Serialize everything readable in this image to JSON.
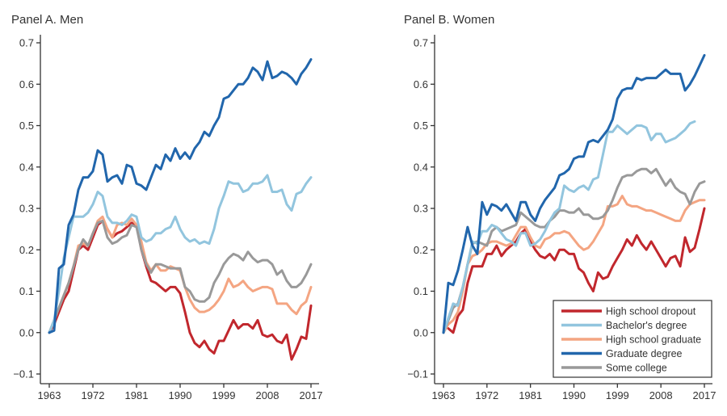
{
  "chart_data": [
    {
      "type": "line",
      "title": "Panel A. Men",
      "xlabel": "",
      "ylabel": "",
      "xlim": [
        1963,
        2017
      ],
      "ylim": [
        -0.1,
        0.7
      ],
      "xticks": [
        1963,
        1972,
        1981,
        1990,
        1999,
        2008,
        2017
      ],
      "xtick_labels": [
        "1963",
        "1972",
        "1981",
        "1990",
        "1999",
        "2008",
        "2017"
      ],
      "yticks": [
        -0.1,
        0.0,
        0.1,
        0.2,
        0.3,
        0.4,
        0.5,
        0.6,
        0.7
      ],
      "ytick_labels": [
        "−0.1",
        "0.0",
        "0.1",
        "0.2",
        "0.3",
        "0.4",
        "0.5",
        "0.6",
        "0.7"
      ],
      "grid": false,
      "legend": null,
      "x": [
        1963,
        1964,
        1965,
        1966,
        1967,
        1968,
        1969,
        1970,
        1971,
        1972,
        1973,
        1974,
        1975,
        1976,
        1977,
        1978,
        1979,
        1980,
        1981,
        1982,
        1983,
        1984,
        1985,
        1986,
        1987,
        1988,
        1989,
        1990,
        1991,
        1992,
        1993,
        1994,
        1995,
        1996,
        1997,
        1998,
        1999,
        2000,
        2001,
        2002,
        2003,
        2004,
        2005,
        2006,
        2007,
        2008,
        2009,
        2010,
        2011,
        2012,
        2013,
        2014,
        2015,
        2016,
        2017
      ],
      "series": [
        {
          "name": "High school dropout",
          "color": "#c1272d",
          "values": [
            0.0,
            0.02,
            0.05,
            0.08,
            0.1,
            0.15,
            0.2,
            0.21,
            0.2,
            0.23,
            0.26,
            0.27,
            0.25,
            0.23,
            0.24,
            0.245,
            0.255,
            0.265,
            0.26,
            0.2,
            0.16,
            0.125,
            0.12,
            0.11,
            0.1,
            0.11,
            0.11,
            0.095,
            0.05,
            0.0,
            -0.025,
            -0.035,
            -0.02,
            -0.04,
            -0.05,
            -0.02,
            -0.02,
            0.005,
            0.03,
            0.01,
            0.02,
            0.02,
            0.01,
            0.03,
            -0.005,
            -0.01,
            -0.005,
            -0.02,
            -0.025,
            -0.005,
            -0.065,
            -0.04,
            -0.01,
            -0.015,
            0.065
          ]
        },
        {
          "name": "Bachelor's degree",
          "color": "#92c5de",
          "values": [
            0.0,
            0.03,
            0.1,
            0.18,
            0.23,
            0.28,
            0.28,
            0.28,
            0.29,
            0.31,
            0.34,
            0.33,
            0.28,
            0.265,
            0.265,
            0.26,
            0.27,
            0.285,
            0.28,
            0.23,
            0.22,
            0.225,
            0.24,
            0.24,
            0.25,
            0.255,
            0.28,
            0.25,
            0.23,
            0.22,
            0.225,
            0.215,
            0.22,
            0.215,
            0.25,
            0.3,
            0.33,
            0.365,
            0.36,
            0.36,
            0.34,
            0.345,
            0.36,
            0.36,
            0.365,
            0.38,
            0.34,
            0.34,
            0.345,
            0.31,
            0.295,
            0.335,
            0.34,
            0.36,
            0.375
          ]
        },
        {
          "name": "High school graduate",
          "color": "#f4a582",
          "values": [
            0.0,
            0.03,
            0.06,
            0.09,
            0.12,
            0.16,
            0.21,
            0.215,
            0.21,
            0.24,
            0.27,
            0.28,
            0.25,
            0.23,
            0.26,
            0.265,
            0.26,
            0.275,
            0.26,
            0.22,
            0.17,
            0.15,
            0.165,
            0.15,
            0.15,
            0.16,
            0.155,
            0.15,
            0.11,
            0.08,
            0.06,
            0.05,
            0.05,
            0.055,
            0.065,
            0.08,
            0.1,
            0.13,
            0.11,
            0.115,
            0.125,
            0.11,
            0.1,
            0.105,
            0.11,
            0.11,
            0.105,
            0.07,
            0.07,
            0.07,
            0.055,
            0.045,
            0.065,
            0.075,
            0.11
          ]
        },
        {
          "name": "Graduate degree",
          "color": "#2166ac",
          "values": [
            0.0,
            0.005,
            0.155,
            0.165,
            0.26,
            0.285,
            0.345,
            0.375,
            0.375,
            0.39,
            0.44,
            0.43,
            0.365,
            0.375,
            0.38,
            0.36,
            0.405,
            0.4,
            0.36,
            0.355,
            0.345,
            0.375,
            0.405,
            0.395,
            0.43,
            0.415,
            0.445,
            0.42,
            0.435,
            0.42,
            0.445,
            0.46,
            0.485,
            0.475,
            0.5,
            0.52,
            0.565,
            0.57,
            0.585,
            0.6,
            0.6,
            0.615,
            0.64,
            0.63,
            0.61,
            0.655,
            0.615,
            0.62,
            0.63,
            0.625,
            0.615,
            0.6,
            0.625,
            0.64,
            0.66
          ]
        },
        {
          "name": "Some college",
          "color": "#999999",
          "values": [
            0.0,
            0.03,
            0.06,
            0.09,
            0.12,
            0.16,
            0.2,
            0.225,
            0.21,
            0.24,
            0.265,
            0.27,
            0.23,
            0.215,
            0.22,
            0.23,
            0.235,
            0.26,
            0.255,
            0.2,
            0.165,
            0.145,
            0.165,
            0.165,
            0.16,
            0.155,
            0.155,
            0.155,
            0.11,
            0.1,
            0.08,
            0.075,
            0.075,
            0.085,
            0.12,
            0.14,
            0.165,
            0.18,
            0.19,
            0.185,
            0.175,
            0.195,
            0.18,
            0.17,
            0.175,
            0.175,
            0.165,
            0.14,
            0.15,
            0.125,
            0.11,
            0.11,
            0.12,
            0.14,
            0.165
          ]
        }
      ]
    },
    {
      "type": "line",
      "title": "Panel B. Women",
      "xlabel": "",
      "ylabel": "",
      "xlim": [
        1963,
        2017
      ],
      "ylim": [
        -0.1,
        0.7
      ],
      "xticks": [
        1963,
        1972,
        1981,
        1990,
        1999,
        2008,
        2017
      ],
      "xtick_labels": [
        "1963",
        "1972",
        "1981",
        "1990",
        "1999",
        "2008",
        "2017"
      ],
      "yticks": [
        -0.1,
        0.0,
        0.1,
        0.2,
        0.3,
        0.4,
        0.5,
        0.6,
        0.7
      ],
      "ytick_labels": [
        "−0.1",
        "0.0",
        "0.1",
        "0.2",
        "0.3",
        "0.4",
        "0.5",
        "0.6",
        "0.7"
      ],
      "grid": false,
      "legend": "bottom-right",
      "x": [
        1963,
        1964,
        1965,
        1966,
        1967,
        1968,
        1969,
        1970,
        1971,
        1972,
        1973,
        1974,
        1975,
        1976,
        1977,
        1978,
        1979,
        1980,
        1981,
        1982,
        1983,
        1984,
        1985,
        1986,
        1987,
        1988,
        1989,
        1990,
        1991,
        1992,
        1993,
        1994,
        1995,
        1996,
        1997,
        1998,
        1999,
        2000,
        2001,
        2002,
        2003,
        2004,
        2005,
        2006,
        2007,
        2008,
        2009,
        2010,
        2011,
        2012,
        2013,
        2014,
        2015,
        2016,
        2017
      ],
      "series": [
        {
          "name": "High school dropout",
          "color": "#c1272d",
          "values": [
            null,
            0.01,
            0.0,
            0.04,
            0.055,
            0.12,
            0.16,
            0.16,
            0.16,
            0.19,
            0.19,
            0.21,
            0.185,
            0.2,
            0.21,
            0.22,
            0.24,
            0.25,
            0.22,
            0.2,
            0.185,
            0.18,
            0.19,
            0.175,
            0.2,
            0.2,
            0.19,
            0.19,
            0.155,
            0.145,
            0.12,
            0.1,
            0.145,
            0.13,
            0.135,
            0.16,
            0.18,
            0.2,
            0.225,
            0.21,
            0.235,
            0.215,
            0.2,
            0.22,
            0.2,
            0.18,
            0.16,
            0.18,
            0.185,
            0.16,
            0.23,
            0.195,
            0.205,
            0.25,
            0.3
          ]
        },
        {
          "name": "Bachelor's degree",
          "color": "#92c5de",
          "values": [
            0.0,
            0.035,
            0.07,
            0.065,
            0.11,
            0.165,
            0.22,
            0.215,
            0.245,
            0.245,
            0.26,
            0.255,
            0.24,
            0.225,
            0.22,
            0.21,
            0.24,
            0.24,
            0.21,
            0.215,
            0.225,
            0.245,
            0.27,
            0.29,
            0.3,
            0.355,
            0.345,
            0.34,
            0.35,
            0.355,
            0.345,
            0.37,
            0.375,
            0.43,
            0.485,
            0.485,
            0.5,
            0.49,
            0.48,
            0.49,
            0.5,
            0.5,
            0.495,
            0.465,
            0.48,
            0.48,
            0.46,
            0.465,
            0.47,
            0.48,
            0.49,
            0.505,
            0.51,
            null,
            null
          ]
        },
        {
          "name": "High school graduate",
          "color": "#f4a582",
          "values": [
            0.0,
            0.02,
            0.03,
            0.05,
            0.1,
            0.165,
            0.185,
            0.19,
            0.2,
            0.215,
            0.22,
            0.22,
            0.215,
            0.21,
            0.215,
            0.235,
            0.255,
            0.255,
            0.23,
            0.21,
            0.205,
            0.225,
            0.23,
            0.24,
            0.24,
            0.245,
            0.24,
            0.225,
            0.21,
            0.2,
            0.205,
            0.22,
            0.24,
            0.26,
            0.305,
            0.305,
            0.31,
            0.33,
            0.31,
            0.305,
            0.305,
            0.3,
            0.295,
            0.295,
            0.29,
            0.285,
            0.28,
            0.275,
            0.27,
            0.27,
            0.295,
            0.31,
            0.315,
            0.32,
            0.32
          ]
        },
        {
          "name": "Graduate degree",
          "color": "#2166ac",
          "values": [
            0.0,
            0.12,
            0.115,
            0.15,
            0.2,
            0.255,
            0.21,
            0.19,
            0.315,
            0.285,
            0.31,
            0.305,
            0.295,
            0.31,
            0.29,
            0.27,
            0.315,
            0.315,
            0.285,
            0.27,
            0.3,
            0.32,
            0.335,
            0.35,
            0.38,
            0.385,
            0.395,
            0.42,
            0.425,
            0.425,
            0.46,
            0.465,
            0.46,
            0.475,
            0.49,
            0.515,
            0.565,
            0.585,
            0.59,
            0.59,
            0.615,
            0.61,
            0.615,
            0.615,
            0.615,
            0.625,
            0.635,
            0.625,
            0.625,
            0.625,
            0.585,
            0.6,
            0.62,
            0.645,
            0.67
          ]
        },
        {
          "name": "Some college",
          "color": "#999999",
          "values": [
            0.0,
            0.03,
            0.06,
            0.07,
            0.11,
            0.165,
            0.215,
            0.22,
            0.215,
            0.21,
            0.245,
            0.255,
            0.245,
            0.25,
            0.255,
            0.26,
            0.29,
            0.28,
            0.27,
            0.26,
            0.255,
            0.255,
            0.27,
            0.28,
            0.295,
            0.295,
            0.29,
            0.29,
            0.3,
            0.285,
            0.285,
            0.275,
            0.275,
            0.28,
            0.295,
            0.32,
            0.35,
            0.375,
            0.38,
            0.38,
            0.39,
            0.395,
            0.395,
            0.385,
            0.395,
            0.375,
            0.355,
            0.37,
            0.35,
            0.34,
            0.335,
            0.31,
            0.34,
            0.36,
            0.365
          ]
        }
      ]
    }
  ]
}
